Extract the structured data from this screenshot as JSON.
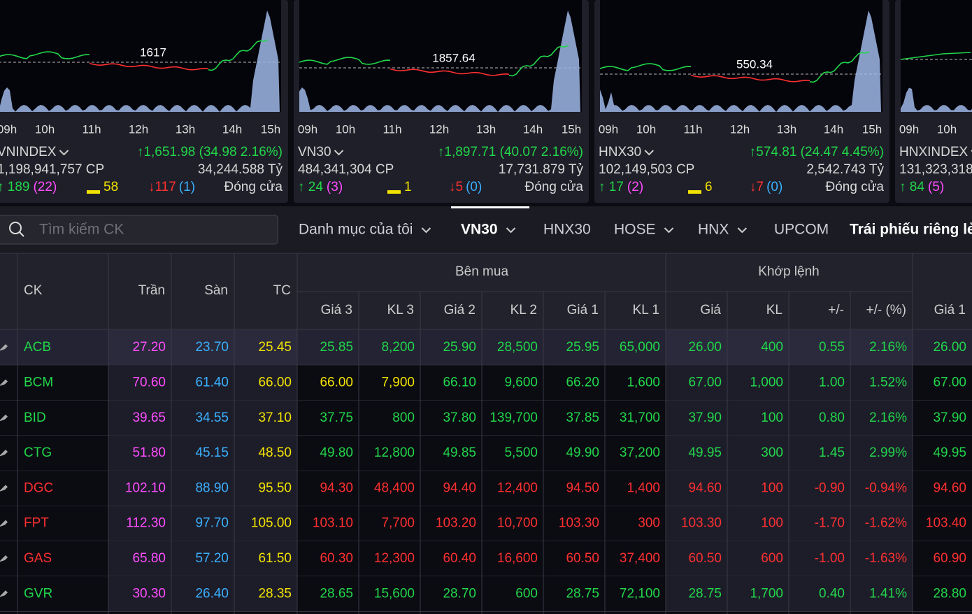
{
  "cards": [
    {
      "name": "VNINDEX",
      "change": "↑1,651.98 (34.98 2.16%)",
      "volume": "1,198,941,757 CP",
      "value": "34,244.588 Tỷ",
      "up": "↑ 189",
      "up_ceiling": "(22)",
      "flat": "58",
      "down": "↓117",
      "down_floor": "(1)",
      "status": "Đóng cửa",
      "ref": "1617",
      "times": [
        "09h",
        "10h",
        "11h",
        "12h",
        "13h",
        "14h",
        "15h"
      ]
    },
    {
      "name": "VN30",
      "change": "↑1,897.71 (40.07 2.16%)",
      "volume": "484,341,304 CP",
      "value": "17,731.879 Tỷ",
      "up": "↑ 24",
      "up_ceiling": "(3)",
      "flat": "1",
      "down": "↓5",
      "down_floor": "(0)",
      "status": "Đóng cửa",
      "ref": "1857.64",
      "times": [
        "09h",
        "10h",
        "11h",
        "12h",
        "13h",
        "14h",
        "15h"
      ]
    },
    {
      "name": "HNX30",
      "change": "↑574.81 (24.47 4.45%)",
      "volume": "102,149,503 CP",
      "value": "2,542.743 Tỷ",
      "up": "↑ 17",
      "up_ceiling": "(2)",
      "flat": "6",
      "down": "↓7",
      "down_floor": "(0)",
      "status": "Đóng cửa",
      "ref": "550.34",
      "times": [
        "09h",
        "10h",
        "11h",
        "12h",
        "13h",
        "14h",
        "15h"
      ]
    },
    {
      "name": "HNXINDEX",
      "volume": "131,323,318",
      "up": "↑ 84",
      "up_ceiling": "(5)",
      "times": [
        "09h",
        "10h"
      ]
    }
  ],
  "search": {
    "placeholder": "Tìm kiếm CK"
  },
  "tabs": [
    "Danh mục của tôi",
    "VN30",
    "HNX30",
    "HOSE",
    "HNX",
    "UPCOM",
    "Trái phiếu riêng lẻ"
  ],
  "table": {
    "groups": [
      "Bên mua",
      "Khớp lệnh"
    ],
    "columns": [
      "CK",
      "Trần",
      "Sàn",
      "TC",
      "Giá 3",
      "KL 3",
      "Giá 2",
      "KL 2",
      "Giá 1",
      "KL 1",
      "Giá",
      "KL",
      "+/-",
      "+/- (%)",
      "Giá 1"
    ],
    "rows": [
      [
        "ACB",
        "27.20",
        "23.70",
        "25.45",
        "25.85",
        "8,200",
        "25.90",
        "28,500",
        "25.95",
        "65,000",
        "26.00",
        "400",
        "0.55",
        "2.16%",
        "26.00"
      ],
      [
        "BCM",
        "70.60",
        "61.40",
        "66.00",
        "66.00",
        "7,900",
        "66.10",
        "9,600",
        "66.20",
        "1,600",
        "67.00",
        "1,000",
        "1.00",
        "1.52%",
        "67.00"
      ],
      [
        "BID",
        "39.65",
        "34.55",
        "37.10",
        "37.75",
        "800",
        "37.80",
        "139,700",
        "37.85",
        "31,700",
        "37.90",
        "100",
        "0.80",
        "2.16%",
        "37.90"
      ],
      [
        "CTG",
        "51.80",
        "45.15",
        "48.50",
        "49.80",
        "12,800",
        "49.85",
        "5,500",
        "49.90",
        "37,200",
        "49.95",
        "300",
        "1.45",
        "2.99%",
        "49.95"
      ],
      [
        "DGC",
        "102.10",
        "88.90",
        "95.50",
        "94.30",
        "48,400",
        "94.40",
        "12,400",
        "94.50",
        "1,400",
        "94.60",
        "100",
        "-0.90",
        "-0.94%",
        "94.60"
      ],
      [
        "FPT",
        "112.30",
        "97.70",
        "105.00",
        "103.10",
        "7,700",
        "103.20",
        "10,700",
        "103.30",
        "300",
        "103.30",
        "100",
        "-1.70",
        "-1.62%",
        "103.40"
      ],
      [
        "GAS",
        "65.80",
        "57.20",
        "61.50",
        "60.30",
        "12,300",
        "60.40",
        "16,600",
        "60.50",
        "37,400",
        "60.50",
        "600",
        "-1.00",
        "-1.63%",
        "60.90"
      ],
      [
        "GVR",
        "30.30",
        "26.40",
        "28.35",
        "28.65",
        "15,600",
        "28.70",
        "600",
        "28.75",
        "72,100",
        "28.75",
        "1,700",
        "0.40",
        "1.41%",
        "28.80"
      ]
    ]
  }
}
